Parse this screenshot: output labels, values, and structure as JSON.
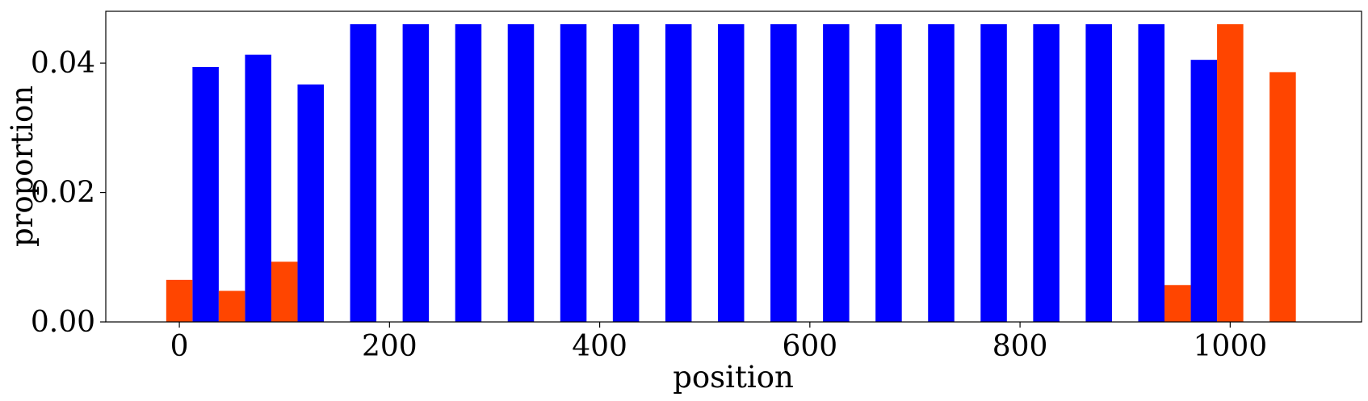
{
  "chart_data": {
    "type": "bar",
    "xlabel": "position",
    "ylabel": "proportion",
    "xlim": [
      -70,
      1125
    ],
    "ylim": [
      0,
      0.048
    ],
    "bar_width": 25,
    "grid": false,
    "legend": "none",
    "x_ticks": [
      {
        "value": 0,
        "label": "0"
      },
      {
        "value": 200,
        "label": "200"
      },
      {
        "value": 400,
        "label": "400"
      },
      {
        "value": 600,
        "label": "600"
      },
      {
        "value": 800,
        "label": "800"
      },
      {
        "value": 1000,
        "label": "1000"
      }
    ],
    "y_ticks": [
      {
        "value": 0,
        "label": "0.00"
      },
      {
        "value": 0.02,
        "label": "0.02"
      },
      {
        "value": 0.04,
        "label": "0.04"
      }
    ],
    "series": [
      {
        "color": "#0000ff",
        "x": [
          25,
          75,
          125,
          175,
          225,
          275,
          325,
          375,
          425,
          475,
          525,
          575,
          625,
          675,
          725,
          775,
          825,
          875,
          925,
          975
        ],
        "values": [
          0.0394,
          0.0413,
          0.0367,
          0.046,
          0.046,
          0.046,
          0.046,
          0.046,
          0.046,
          0.046,
          0.046,
          0.046,
          0.046,
          0.046,
          0.046,
          0.046,
          0.046,
          0.046,
          0.046,
          0.0405
        ]
      },
      {
        "color": "#ff4500",
        "x": [
          0,
          50,
          100,
          950,
          1000,
          1050
        ],
        "values": [
          0.0065,
          0.0048,
          0.0093,
          0.0057,
          0.046,
          0.0386
        ]
      }
    ]
  }
}
